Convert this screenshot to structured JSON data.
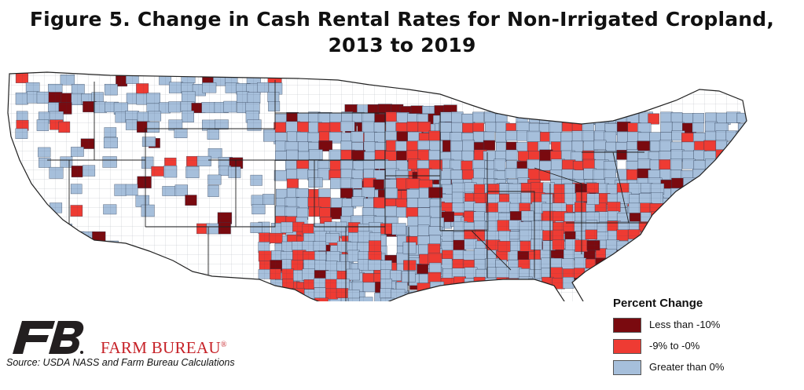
{
  "title": {
    "line1": "Figure 5. Change in Cash Rental Rates for Non-Irrigated Cropland,",
    "line2": "2013 to 2019"
  },
  "map": {
    "region": "United States (contiguous)",
    "unit": "county"
  },
  "legend": {
    "title": "Percent Change",
    "items": [
      {
        "label": "Less than -10%",
        "color": "#7a0a0f"
      },
      {
        "label": "-9% to -0%",
        "color": "#ee3b33"
      },
      {
        "label": "Greater than 0%",
        "color": "#a6bfdb"
      }
    ]
  },
  "branding": {
    "name": "FARM BUREAU",
    "mark": "®",
    "logo_color": "#231f20",
    "accent_color": "#c62127"
  },
  "source": "Source: USDA NASS and Farm Bureau Calculations"
}
